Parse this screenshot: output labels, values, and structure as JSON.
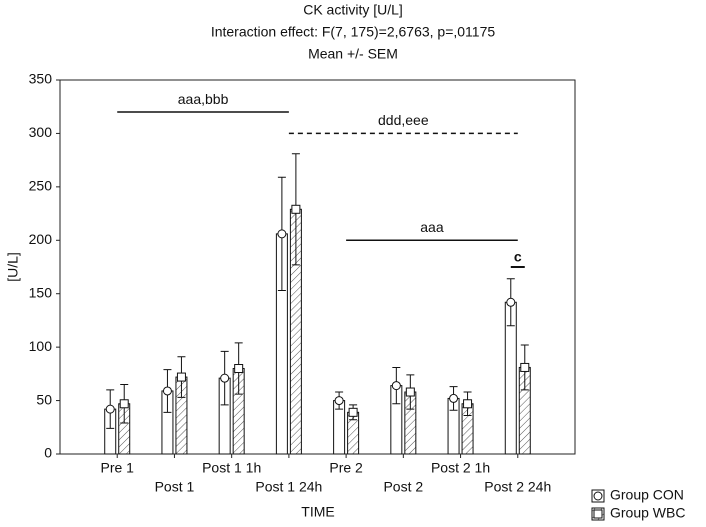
{
  "chart_data": {
    "type": "bar",
    "title": "CK activity [U/L]",
    "subtitle": "Interaction effect: F(7, 175)=2,6763, p=,01175",
    "subtitle2": "Mean +/- SEM",
    "x_label": "TIME",
    "y_label": "[U/L]",
    "categories": [
      "Pre 1",
      "Post 1",
      "Post 1 1h",
      "Post 1 24h",
      "Pre 2",
      "Post 2",
      "Post 2 1h",
      "Post 2 24h"
    ],
    "series": [
      {
        "name": "Group CON",
        "color": "#ffffff",
        "marker": "circle",
        "hatch": false,
        "values": [
          42,
          59,
          71,
          206,
          50,
          64,
          52,
          142
        ],
        "errors": [
          18,
          20,
          25,
          53,
          8,
          17,
          11,
          22
        ]
      },
      {
        "name": "Group WBC",
        "color": "#ffffff",
        "marker": "square",
        "hatch": true,
        "values": [
          47,
          72,
          80,
          229,
          39,
          58,
          47,
          81
        ],
        "errors": [
          18,
          19,
          24,
          52,
          7,
          16,
          11,
          21
        ]
      }
    ],
    "ylim": [
      0,
      350
    ],
    "yticks": [
      0,
      50,
      100,
      150,
      200,
      250,
      300,
      350
    ],
    "grid": false,
    "legend": "bottom-right",
    "annotations": [
      {
        "text": "aaa,bbb",
        "from": "Pre 1",
        "to": "Post 1 24h",
        "y": 320,
        "style": "solid"
      },
      {
        "text": "ddd,eee",
        "from": "Post 1 24h",
        "to": "Post 2 24h",
        "y": 300,
        "style": "dashed"
      },
      {
        "text": "aaa",
        "from": "Pre 2",
        "to": "Post 2 24h",
        "y": 200,
        "style": "solid"
      },
      {
        "text": "c",
        "from": "Post 2 24h",
        "to": "Post 2 24h",
        "y": 175,
        "style": "bold"
      }
    ]
  }
}
